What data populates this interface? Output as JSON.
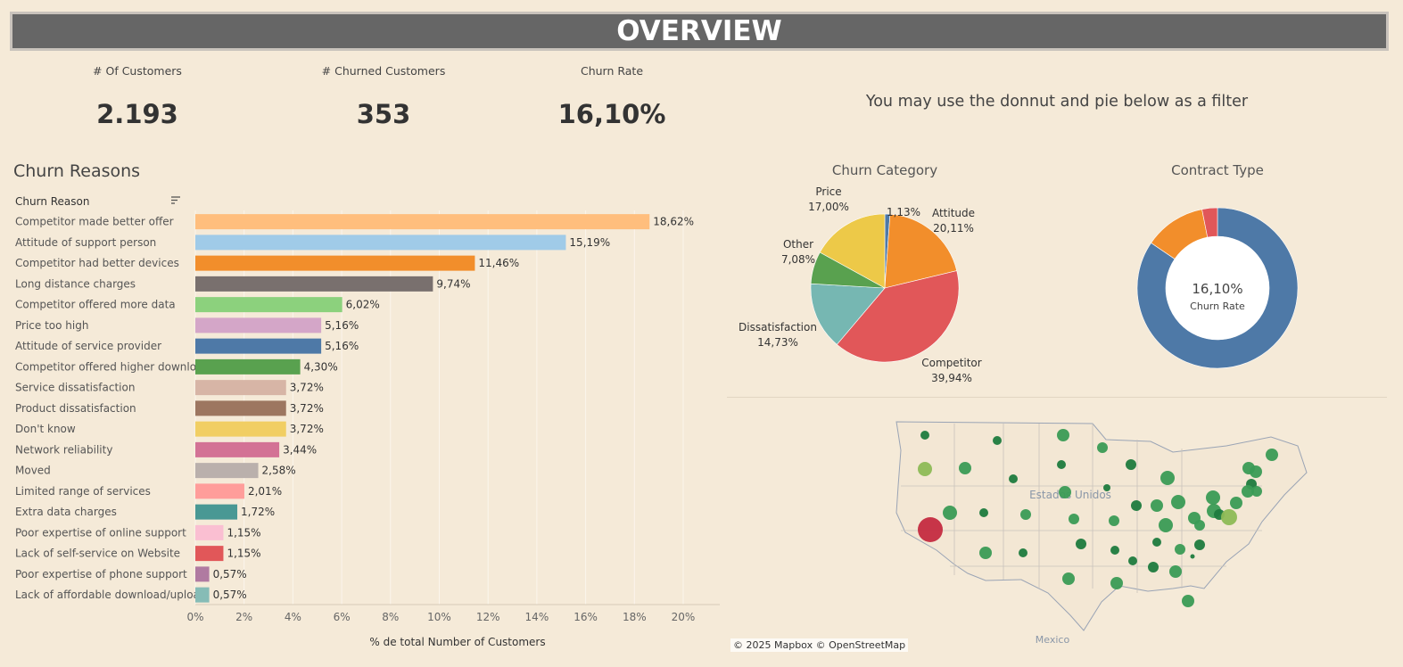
{
  "header": {
    "title": "OVERVIEW"
  },
  "kpis": [
    {
      "label": "# Of Customers",
      "value": "2.193"
    },
    {
      "label": "# Churned Customers",
      "value": "353"
    },
    {
      "label": "Churn Rate",
      "value": "16,10%"
    }
  ],
  "filter_hint": "You may use the donnut and pie below as a filter",
  "sections": {
    "churn_reasons": "Churn Reasons",
    "churn_category": "Churn Category",
    "contract_type": "Contract Type"
  },
  "colors": {
    "background": "#f5ead8",
    "banner": "#666666"
  },
  "chart_data": [
    {
      "type": "bar",
      "orientation": "horizontal",
      "title": "Churn Reasons",
      "column_header": "Churn Reason",
      "categories": [
        "Competitor made better offer",
        "Attitude of support person",
        "Competitor had better devices",
        "Long distance charges",
        "Competitor offered more data",
        "Price too high",
        "Attitude of service provider",
        "Competitor offered higher downlo..",
        "Service dissatisfaction",
        "Product dissatisfaction",
        "Don't know",
        "Network reliability",
        "Moved",
        "Limited range of services",
        "Extra data charges",
        "Poor expertise of online support",
        "Lack of self-service on Website",
        "Poor expertise of phone support",
        "Lack of affordable download/uploa.."
      ],
      "values": [
        18.62,
        15.19,
        11.46,
        9.74,
        6.02,
        5.16,
        5.16,
        4.3,
        3.72,
        3.72,
        3.72,
        3.44,
        2.58,
        2.01,
        1.72,
        1.15,
        1.15,
        0.57,
        0.57
      ],
      "value_labels": [
        "18,62%",
        "15,19%",
        "11,46%",
        "9,74%",
        "6,02%",
        "5,16%",
        "5,16%",
        "4,30%",
        "3,72%",
        "3,72%",
        "3,72%",
        "3,44%",
        "2,58%",
        "2,01%",
        "1,72%",
        "1,15%",
        "1,15%",
        "0,57%",
        "0,57%"
      ],
      "colors": [
        "#ffbe7d",
        "#a0cbe8",
        "#f28e2b",
        "#79706e",
        "#8cd17d",
        "#d4a6c8",
        "#4e79a7",
        "#59a14f",
        "#d7b5a6",
        "#9d7660",
        "#f1ce63",
        "#d37295",
        "#bab0ac",
        "#ff9d9a",
        "#499894",
        "#fabfd2",
        "#e15759",
        "#b07aa1",
        "#86bcb6"
      ],
      "xlim": [
        0,
        21.5
      ],
      "xticks": [
        "0%",
        "2%",
        "4%",
        "6%",
        "8%",
        "10%",
        "12%",
        "14%",
        "16%",
        "18%",
        "20%"
      ],
      "xlabel": "% de total Number of Customers",
      "grid": true
    },
    {
      "type": "pie",
      "title": "Churn Category",
      "slices": [
        {
          "label": "",
          "value": 1.13,
          "value_label": "1,13%",
          "color": "#4e79a7"
        },
        {
          "label": "Attitude",
          "value": 20.11,
          "value_label": "20,11%",
          "color": "#f28e2b"
        },
        {
          "label": "Competitor",
          "value": 39.94,
          "value_label": "39,94%",
          "color": "#e15759"
        },
        {
          "label": "Dissatisfaction",
          "value": 14.73,
          "value_label": "14,73%",
          "color": "#76b7b2"
        },
        {
          "label": "Other",
          "value": 7.08,
          "value_label": "7,08%",
          "color": "#59a14f"
        },
        {
          "label": "Price",
          "value": 17.0,
          "value_label": "17,00%",
          "color": "#edc948"
        }
      ]
    },
    {
      "type": "pie",
      "variant": "donut",
      "title": "Contract Type",
      "center_value": "16,10%",
      "center_label": "Churn Rate",
      "slices": [
        {
          "value": 84.5,
          "color": "#4e79a7"
        },
        {
          "value": 12.4,
          "color": "#f28e2b"
        },
        {
          "value": 3.1,
          "color": "#e15759"
        }
      ]
    }
  ],
  "map": {
    "labels": {
      "country": "Estados Unidos",
      "neighbor": "Mexico"
    },
    "attribution": "© 2025 Mapbox  © OpenStreetMap"
  }
}
